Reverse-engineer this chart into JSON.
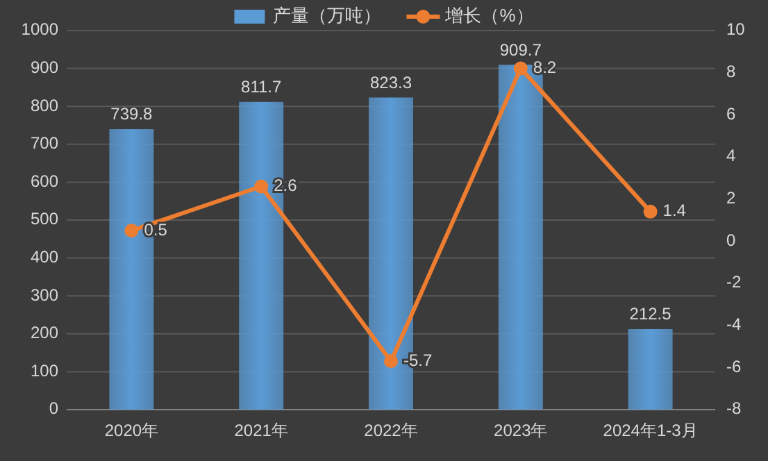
{
  "chart_data": {
    "type": "bar",
    "categories": [
      "2020年",
      "2021年",
      "2022年",
      "2023年",
      "2024年1-3月"
    ],
    "series": [
      {
        "name": "产量（万吨）",
        "color": "#5b9bd5",
        "values": [
          739.8,
          811.7,
          823.3,
          909.7,
          212.5
        ]
      },
      {
        "name": "增长（%）",
        "type": "line",
        "axis": "y2",
        "color": "#ed7d31",
        "values": [
          0.5,
          2.6,
          -5.7,
          8.2,
          1.4
        ]
      }
    ],
    "ylim": [
      0,
      1000
    ],
    "yticks": [
      0,
      100,
      200,
      300,
      400,
      500,
      600,
      700,
      800,
      900,
      1000
    ],
    "y2lim": [
      -8,
      10
    ],
    "y2ticks": [
      -8,
      -6,
      -4,
      -2,
      0,
      2,
      4,
      6,
      8,
      10
    ],
    "grid": "y",
    "legend": "top",
    "data_labels": true,
    "marker": "circle"
  }
}
